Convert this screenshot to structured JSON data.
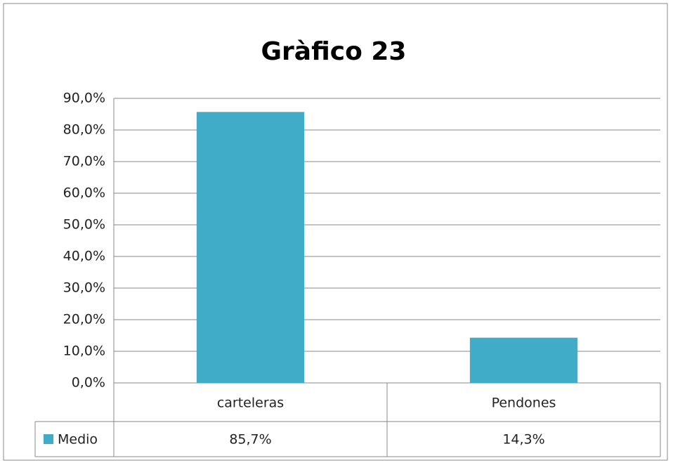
{
  "chart_data": {
    "type": "bar",
    "title": "Gràfico 23",
    "categories": [
      "carteleras",
      "Pendones"
    ],
    "series": [
      {
        "name": "Medio",
        "color": "#40acc8",
        "values": [
          85.7,
          14.3
        ],
        "value_labels": [
          "85,7%",
          "14,3%"
        ]
      }
    ],
    "ylim": [
      0,
      90
    ],
    "yticks": [
      {
        "value": 0,
        "label": "0,0%"
      },
      {
        "value": 10,
        "label": "10,0%"
      },
      {
        "value": 20,
        "label": "20,0%"
      },
      {
        "value": 30,
        "label": "30,0%"
      },
      {
        "value": 40,
        "label": "40,0%"
      },
      {
        "value": 50,
        "label": "50,0%"
      },
      {
        "value": 60,
        "label": "60,0%"
      },
      {
        "value": 70,
        "label": "70,0%"
      },
      {
        "value": 80,
        "label": "80,0%"
      },
      {
        "value": 90,
        "label": "90,0%"
      }
    ],
    "grid": true
  }
}
